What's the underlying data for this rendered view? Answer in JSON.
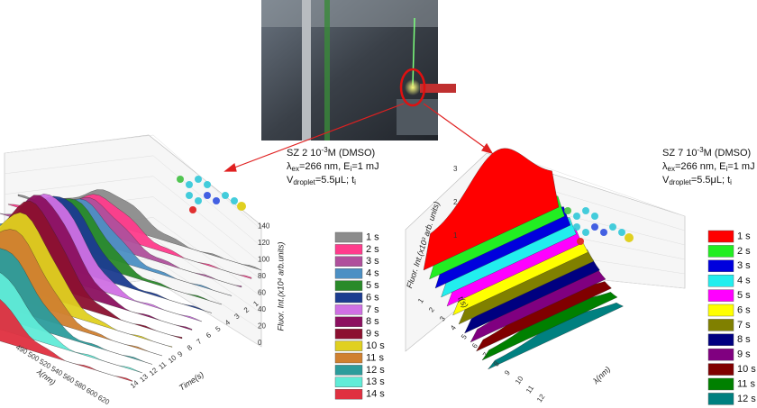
{
  "photo": {},
  "left_panel": {
    "conditions": [
      [
        {
          "t": "SZ 2 10"
        },
        {
          "t": "-3",
          "sup": true
        },
        {
          "t": "M (DMSO)"
        }
      ],
      [
        {
          "t": "λ"
        },
        {
          "t": "ex",
          "sub": true
        },
        {
          "t": "=266 nm, E"
        },
        {
          "t": "i",
          "sub": true
        },
        {
          "t": "=1 mJ"
        }
      ],
      [
        {
          "t": "V"
        },
        {
          "t": "droplet",
          "sub": true
        },
        {
          "t": "=5.5μL; t"
        },
        {
          "t": "i",
          "sub": true
        }
      ]
    ],
    "z_axis_label": "Fluor. Int.(x10⁴ arb.units)",
    "z_ticks": [
      "0",
      "20",
      "40",
      "60",
      "80",
      "100",
      "120",
      "140"
    ],
    "wavelength_axis_label": "λ(nm)",
    "wavelength_ticks": [
      "490",
      "500",
      "520",
      "540",
      "560",
      "580",
      "600",
      "620"
    ],
    "time_axis_label": "Time(s)",
    "time_ticks": [
      "14",
      "13",
      "12",
      "11",
      "10",
      "9",
      "8",
      "7",
      "6",
      "5",
      "4",
      "3",
      "2",
      "1"
    ],
    "legend": [
      {
        "label": "1 s",
        "color": "#8c8c8c"
      },
      {
        "label": "2 s",
        "color": "#ff3c8c"
      },
      {
        "label": "3 s",
        "color": "#b0509c"
      },
      {
        "label": "4 s",
        "color": "#4c90c4"
      },
      {
        "label": "5 s",
        "color": "#2a8a2a"
      },
      {
        "label": "6 s",
        "color": "#1c3c90"
      },
      {
        "label": "7 s",
        "color": "#d070e4"
      },
      {
        "label": "8 s",
        "color": "#8c1060"
      },
      {
        "label": "9 s",
        "color": "#8c1030"
      },
      {
        "label": "10 s",
        "color": "#e0d020"
      },
      {
        "label": "11 s",
        "color": "#d08030"
      },
      {
        "label": "12 s",
        "color": "#2c9c9c"
      },
      {
        "label": "13 s",
        "color": "#60ecd8"
      },
      {
        "label": "14 s",
        "color": "#e03040"
      }
    ]
  },
  "right_panel": {
    "conditions": [
      [
        {
          "t": "SZ 7 10"
        },
        {
          "t": "-3",
          "sup": true
        },
        {
          "t": "M (DMSO)"
        }
      ],
      [
        {
          "t": "λ"
        },
        {
          "t": "ex",
          "sub": true
        },
        {
          "t": "=266 nm, E"
        },
        {
          "t": "i",
          "sub": true
        },
        {
          "t": "=1 mJ"
        }
      ],
      [
        {
          "t": "V"
        },
        {
          "t": "droplet",
          "sub": true
        },
        {
          "t": "=5.5μL; t"
        },
        {
          "t": "i",
          "sub": true
        }
      ]
    ],
    "z_axis_label": "Fluor. Int.(x10³ arb. units)",
    "z_ticks": [
      "1",
      "2",
      "3"
    ],
    "time_axis_label": "t(s)",
    "time_ticks": [
      "12",
      "11",
      "10",
      "9",
      "8",
      "7",
      "6",
      "5",
      "4",
      "3",
      "2",
      "1"
    ],
    "wavelength_axis_label": "λ(nm)",
    "legend": [
      {
        "label": "1 s",
        "color": "#ff0000"
      },
      {
        "label": "2 s",
        "color": "#22ee22"
      },
      {
        "label": "3 s",
        "color": "#0000dd"
      },
      {
        "label": "4 s",
        "color": "#22eeee"
      },
      {
        "label": "5 s",
        "color": "#ff00ff"
      },
      {
        "label": "6 s",
        "color": "#ffff00"
      },
      {
        "label": "7 s",
        "color": "#808000"
      },
      {
        "label": "8 s",
        "color": "#000080"
      },
      {
        "label": "9 s",
        "color": "#800080"
      },
      {
        "label": "10 s",
        "color": "#800000"
      },
      {
        "label": "11 s",
        "color": "#008000"
      },
      {
        "label": "12 s",
        "color": "#008080"
      }
    ]
  }
}
